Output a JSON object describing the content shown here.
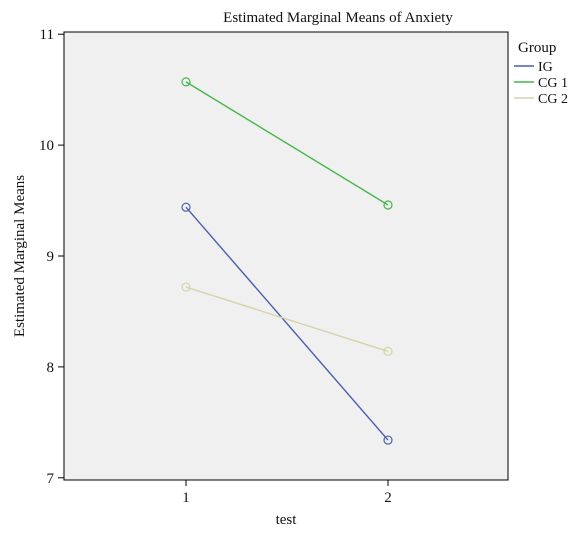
{
  "chart_data": {
    "type": "line",
    "title": "Estimated Marginal Means of Anxiety",
    "xlabel": "test",
    "ylabel": "Estimated Marginal Means",
    "categories": [
      "1",
      "2"
    ],
    "yticks": [
      7,
      8,
      9,
      10,
      11
    ],
    "ylim": [
      6.98,
      11.02
    ],
    "grid": false,
    "legend": {
      "title": "Group",
      "placement": "outside-right"
    },
    "series": [
      {
        "name": "IG",
        "values": [
          9.44,
          7.34
        ],
        "color": "#4a5fae"
      },
      {
        "name": "CG 1",
        "values": [
          10.57,
          9.46
        ],
        "color": "#45b54a"
      },
      {
        "name": "CG 2",
        "values": [
          8.72,
          8.14
        ],
        "color": "#d6d3a8"
      }
    ],
    "plot_background": "#f0f0f0",
    "marker": "open-circle"
  }
}
